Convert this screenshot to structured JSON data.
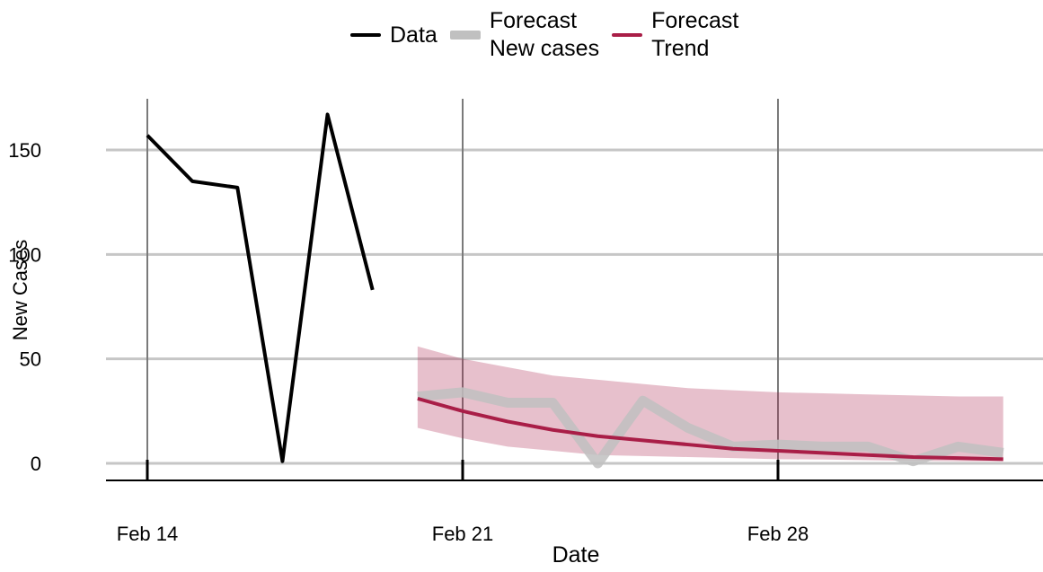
{
  "chart_data": {
    "type": "line",
    "title": "",
    "xlabel": "Date",
    "ylabel": "New Cases",
    "x_ticks": [
      "Feb 14",
      "Feb 21",
      "Feb 28"
    ],
    "y_ticks": [
      0,
      50,
      100,
      150
    ],
    "ylim": [
      -8,
      175
    ],
    "xlim": [
      "2021-02-13",
      "2021-03-05"
    ],
    "grid": "horizontal at y ticks, vertical at x ticks",
    "legend_placement": "top",
    "legend": [
      {
        "label": "Data",
        "color": "#000000"
      },
      {
        "label": "Forecast\nNew cases",
        "color": "#c0c0c0"
      },
      {
        "label": "Forecast\nTrend",
        "color": "#a91e47"
      }
    ],
    "series": [
      {
        "name": "Data",
        "color": "#000000",
        "x": [
          "2021-02-14",
          "2021-02-15",
          "2021-02-16",
          "2021-02-17",
          "2021-02-18",
          "2021-02-19"
        ],
        "y": [
          157,
          135,
          132,
          1,
          167,
          83
        ]
      },
      {
        "name": "Forecast New cases",
        "color": "#c0c0c0",
        "x": [
          "2021-02-20",
          "2021-02-21",
          "2021-02-22",
          "2021-02-23",
          "2021-02-24",
          "2021-02-25",
          "2021-02-26",
          "2021-02-27",
          "2021-02-28",
          "2021-03-01",
          "2021-03-02",
          "2021-03-03",
          "2021-03-04",
          "2021-03-05"
        ],
        "y": [
          32,
          34,
          29,
          29,
          0,
          30,
          17,
          8,
          9,
          8,
          8,
          1,
          8,
          5
        ]
      },
      {
        "name": "Forecast Trend",
        "color": "#a91e47",
        "x": [
          "2021-02-20",
          "2021-02-21",
          "2021-02-22",
          "2021-02-23",
          "2021-02-24",
          "2021-02-25",
          "2021-02-26",
          "2021-02-27",
          "2021-02-28",
          "2021-03-01",
          "2021-03-02",
          "2021-03-03",
          "2021-03-04",
          "2021-03-05"
        ],
        "y": [
          31,
          25,
          20,
          16,
          13,
          11,
          9,
          7,
          6,
          5,
          4,
          3,
          2.5,
          2
        ],
        "lower": [
          17,
          12,
          8,
          6,
          4,
          3.5,
          3,
          2.5,
          2,
          1.8,
          1.5,
          1.2,
          1,
          1
        ],
        "upper": [
          56,
          50,
          46,
          42,
          40,
          38,
          36,
          35,
          34,
          33.5,
          33,
          32.5,
          32,
          32
        ]
      }
    ]
  }
}
